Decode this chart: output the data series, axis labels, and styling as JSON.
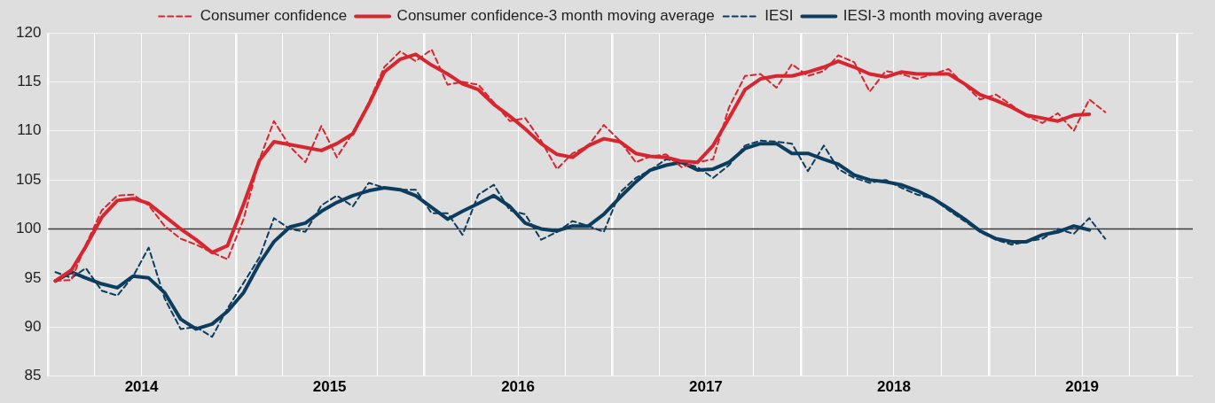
{
  "chart_data": {
    "type": "line",
    "x": [
      "2014-01-15",
      "2014-02-15",
      "2014-03-15",
      "2014-04-15",
      "2014-05-15",
      "2014-06-15",
      "2014-07-15",
      "2014-08-15",
      "2014-09-15",
      "2014-10-15",
      "2014-11-15",
      "2014-12-15",
      "2015-01-15",
      "2015-02-15",
      "2015-03-15",
      "2015-04-15",
      "2015-05-15",
      "2015-06-15",
      "2015-07-15",
      "2015-08-15",
      "2015-09-15",
      "2015-10-15",
      "2015-11-15",
      "2015-12-15",
      "2016-01-15",
      "2016-02-15",
      "2016-03-15",
      "2016-04-15",
      "2016-05-15",
      "2016-06-15",
      "2016-07-15",
      "2016-08-15",
      "2016-09-15",
      "2016-10-15",
      "2016-11-15",
      "2016-12-15",
      "2017-01-15",
      "2017-02-15",
      "2017-03-15",
      "2017-04-15",
      "2017-05-15",
      "2017-06-15",
      "2017-07-15",
      "2017-08-15",
      "2017-09-15",
      "2017-10-15",
      "2017-11-15",
      "2017-12-15",
      "2018-01-15",
      "2018-02-15",
      "2018-03-15",
      "2018-04-15",
      "2018-05-15",
      "2018-06-15",
      "2018-07-15",
      "2018-08-15",
      "2018-09-15",
      "2018-10-15",
      "2018-11-15",
      "2018-12-15",
      "2019-01-15",
      "2019-02-15",
      "2019-03-15",
      "2019-04-15",
      "2019-05-15",
      "2019-06-15",
      "2019-07-15",
      "2019-08-15"
    ],
    "series": [
      {
        "name": "Consumer confidence",
        "color": "#d7262f",
        "line_style": "dashed",
        "values": [
          94.7,
          94.8,
          98.4,
          101.9,
          103.4,
          103.5,
          102.4,
          100.3,
          99.0,
          98.4,
          97.6,
          96.9,
          101.0,
          107.1,
          111.0,
          108.4,
          106.8,
          110.5,
          107.3,
          109.8,
          112.9,
          116.5,
          118.1,
          117.1,
          118.3,
          114.7,
          115.0,
          114.7,
          112.9,
          111.0,
          111.3,
          109.0,
          106.1,
          107.7,
          108.5,
          110.6,
          109.0,
          106.8,
          107.4,
          107.6,
          106.3,
          106.8,
          107.1,
          112.4,
          115.6,
          115.8,
          114.4,
          116.8,
          115.6,
          116.1,
          117.7,
          117.0,
          114.0,
          116.1,
          115.8,
          115.3,
          115.8,
          116.3,
          114.7,
          113.2,
          113.7,
          112.6,
          111.5,
          110.8,
          111.8,
          110.0,
          113.2,
          111.9
        ]
      },
      {
        "name": "Consumer confidence-3 month moving average",
        "color": "#d7262f",
        "line_style": "solid",
        "values": [
          94.7,
          95.8,
          98.2,
          101.2,
          102.9,
          103.1,
          102.6,
          101.3,
          100.0,
          98.9,
          97.6,
          98.3,
          102.5,
          107.0,
          108.9,
          108.6,
          108.3,
          108.0,
          108.7,
          109.7,
          112.7,
          116.0,
          117.3,
          117.8,
          116.7,
          115.8,
          114.8,
          114.2,
          112.7,
          111.5,
          110.2,
          108.7,
          107.6,
          107.3,
          108.5,
          109.2,
          108.9,
          107.7,
          107.4,
          107.3,
          106.9,
          106.8,
          108.5,
          111.3,
          114.2,
          115.3,
          115.6,
          115.6,
          116.0,
          116.5,
          117.1,
          116.5,
          115.8,
          115.5,
          116.0,
          115.8,
          115.8,
          115.8,
          114.8,
          113.7,
          113.1,
          112.4,
          111.6,
          111.3,
          111.0,
          111.6,
          111.7,
          null
        ]
      },
      {
        "name": "IESI",
        "color": "#0d3d5e",
        "line_style": "dashed",
        "values": [
          95.6,
          95.0,
          96.0,
          93.7,
          93.2,
          95.2,
          98.1,
          92.9,
          89.8,
          90.0,
          89.0,
          91.9,
          94.5,
          97.1,
          101.1,
          100.0,
          99.7,
          102.4,
          103.4,
          102.3,
          104.7,
          104.2,
          104.0,
          104.0,
          101.6,
          101.6,
          99.4,
          103.5,
          104.5,
          101.9,
          101.5,
          98.9,
          99.7,
          100.8,
          100.3,
          99.7,
          103.7,
          105.2,
          106.0,
          107.1,
          106.8,
          106.3,
          105.2,
          106.5,
          108.5,
          109.0,
          108.9,
          108.7,
          105.9,
          108.5,
          106.1,
          105.2,
          104.7,
          105.0,
          104.2,
          103.5,
          103.1,
          101.9,
          100.8,
          99.7,
          98.9,
          98.4,
          98.7,
          99.0,
          100.0,
          99.5,
          101.1,
          99.0
        ]
      },
      {
        "name": "IESI-3 month moving average",
        "color": "#0d3d5e",
        "line_style": "solid",
        "values": [
          94.7,
          95.6,
          95.0,
          94.4,
          94.0,
          95.2,
          95.0,
          93.5,
          90.8,
          89.8,
          90.3,
          91.6,
          93.5,
          96.5,
          98.7,
          100.2,
          100.6,
          101.8,
          102.7,
          103.4,
          103.9,
          104.2,
          104.0,
          103.4,
          102.2,
          101.0,
          101.8,
          102.6,
          103.4,
          102.3,
          100.6,
          100.0,
          99.8,
          100.3,
          100.3,
          101.5,
          103.2,
          104.8,
          106.0,
          106.5,
          106.8,
          106.0,
          106.1,
          106.8,
          108.2,
          108.7,
          108.7,
          107.7,
          107.7,
          107.1,
          106.6,
          105.5,
          105.0,
          104.8,
          104.5,
          103.9,
          103.1,
          102.1,
          101.0,
          99.8,
          99.0,
          98.7,
          98.7,
          99.4,
          99.7,
          100.3,
          99.9,
          null
        ]
      }
    ],
    "xlim": [
      "2014-01-01",
      "2020-02-01"
    ],
    "xticks": [
      {
        "value": "2014-01-01",
        "label": null
      },
      {
        "value": "2014-04-01",
        "label": null
      },
      {
        "value": "2014-07-01",
        "label": "2014"
      },
      {
        "value": "2014-10-01",
        "label": null
      },
      {
        "value": "2015-01-01",
        "label": null
      },
      {
        "value": "2015-04-01",
        "label": null
      },
      {
        "value": "2015-07-01",
        "label": "2015"
      },
      {
        "value": "2015-10-01",
        "label": null
      },
      {
        "value": "2016-01-01",
        "label": null
      },
      {
        "value": "2016-04-01",
        "label": null
      },
      {
        "value": "2016-07-01",
        "label": "2016"
      },
      {
        "value": "2016-10-01",
        "label": null
      },
      {
        "value": "2017-01-01",
        "label": null
      },
      {
        "value": "2017-04-01",
        "label": null
      },
      {
        "value": "2017-07-01",
        "label": "2017"
      },
      {
        "value": "2017-10-01",
        "label": null
      },
      {
        "value": "2018-01-01",
        "label": null
      },
      {
        "value": "2018-04-01",
        "label": null
      },
      {
        "value": "2018-07-01",
        "label": "2018"
      },
      {
        "value": "2018-10-01",
        "label": null
      },
      {
        "value": "2019-01-01",
        "label": null
      },
      {
        "value": "2019-04-01",
        "label": null
      },
      {
        "value": "2019-07-01",
        "label": "2019"
      },
      {
        "value": "2019-10-01",
        "label": null
      },
      {
        "value": "2020-01-01",
        "label": null
      }
    ],
    "ylim": [
      85,
      120
    ],
    "yticks": [
      85,
      90,
      95,
      100,
      105,
      110,
      115,
      120
    ],
    "ref_lines": [
      {
        "axis": "y",
        "value": 100,
        "color": "#3a3a3a"
      }
    ],
    "grid": true,
    "legend": "top",
    "marker": "none"
  }
}
